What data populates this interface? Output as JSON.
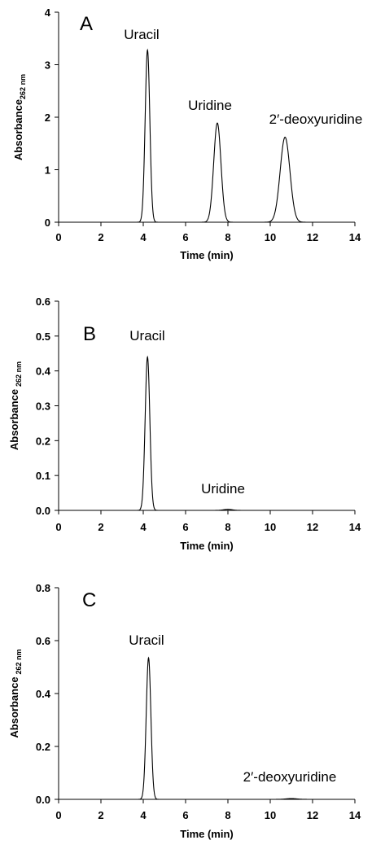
{
  "chart_data": [
    {
      "type": "line",
      "panel_label": "A",
      "xlabel": "Time (min)",
      "ylabel": "Absorbance",
      "ylabel_sub": "262 nm",
      "xlim": [
        0,
        14
      ],
      "ylim": [
        0,
        4
      ],
      "xticks": [
        "0",
        "2",
        "4",
        "6",
        "8",
        "10",
        "12",
        "14"
      ],
      "yticks": [
        "0",
        "1",
        "2",
        "3",
        "4"
      ],
      "grid": false,
      "trace_range": [
        2,
        12
      ],
      "peaks": [
        {
          "label": "Uracil",
          "x": 4.2,
          "height": 3.28,
          "width": 0.11
        },
        {
          "label": "Uridine",
          "x": 7.5,
          "height": 1.89,
          "width": 0.17
        },
        {
          "label": "2′-deoxyuridine",
          "x": 10.7,
          "height": 1.62,
          "width": 0.23
        }
      ]
    },
    {
      "type": "line",
      "panel_label": "B",
      "xlabel": "Time (min)",
      "ylabel": "Absorbance",
      "ylabel_sub": "262 nm",
      "xlim": [
        0,
        14
      ],
      "ylim": [
        0,
        0.6
      ],
      "xticks": [
        "0",
        "2",
        "4",
        "6",
        "8",
        "10",
        "12",
        "14"
      ],
      "yticks": [
        "0.0",
        "0.1",
        "0.2",
        "0.3",
        "0.4",
        "0.5",
        "0.6"
      ],
      "grid": false,
      "trace_range": [
        2,
        12
      ],
      "peaks": [
        {
          "label": "Uracil",
          "x": 4.2,
          "height": 0.44,
          "width": 0.11
        },
        {
          "label": "Uridine",
          "x": 8.0,
          "height": 0.003,
          "width": 0.2
        }
      ]
    },
    {
      "type": "line",
      "panel_label": "C",
      "xlabel": "Time (min)",
      "ylabel": "Absorbance",
      "ylabel_sub": "262 nm",
      "xlim": [
        0,
        14
      ],
      "ylim": [
        0,
        0.8
      ],
      "xticks": [
        "0",
        "2",
        "4",
        "6",
        "8",
        "10",
        "12",
        "14"
      ],
      "yticks": [
        "0.0",
        "0.2",
        "0.4",
        "0.6",
        "0.8"
      ],
      "grid": false,
      "trace_range": [
        3,
        12
      ],
      "peaks": [
        {
          "label": "Uracil",
          "x": 4.25,
          "height": 0.535,
          "width": 0.11
        },
        {
          "label": "2′-deoxyuridine",
          "x": 11.0,
          "height": 0.003,
          "width": 0.25
        }
      ]
    }
  ]
}
